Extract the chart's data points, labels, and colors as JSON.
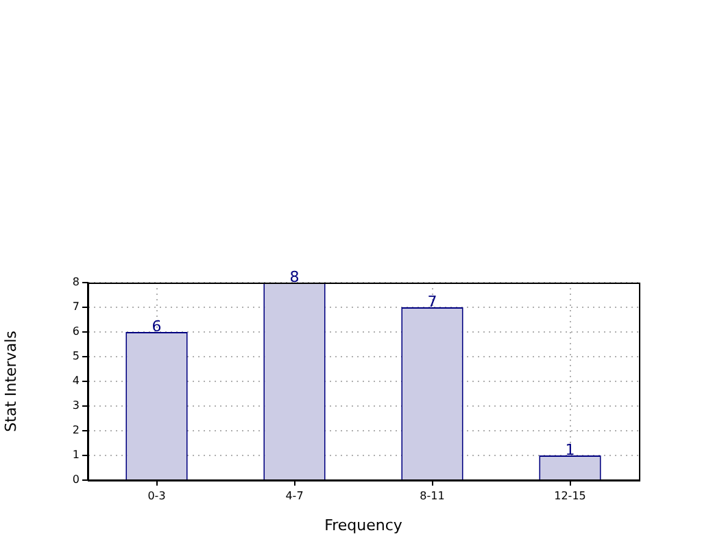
{
  "chart_data": {
    "type": "bar",
    "xlabel": "Frequency",
    "ylabel": "Stat Intervals",
    "categories": [
      "0-3",
      "4-7",
      "8-11",
      "12-15"
    ],
    "values": [
      6,
      8,
      7,
      1
    ],
    "color": "#ccccE5",
    "ylim": [
      0,
      8
    ],
    "yticks": [
      0,
      1,
      2,
      3,
      4,
      5,
      6,
      7,
      8
    ],
    "grid": true,
    "data_labels": true
  }
}
